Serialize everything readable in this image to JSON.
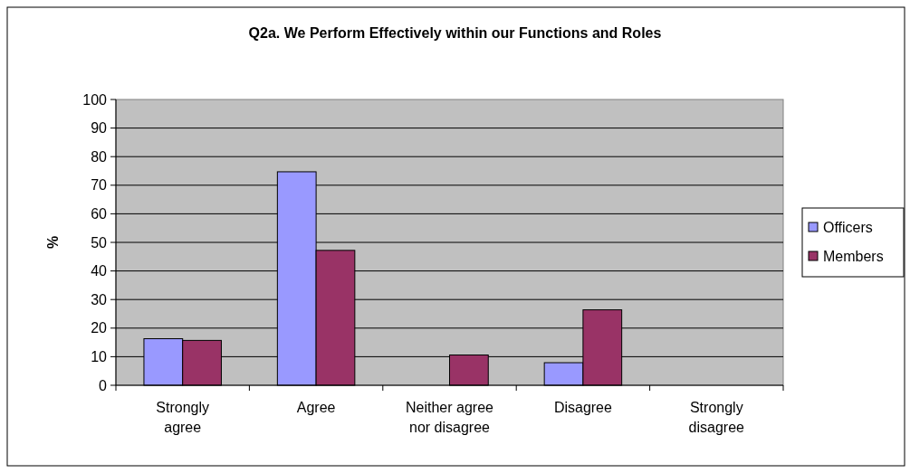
{
  "chart_data": {
    "type": "bar",
    "title": "Q2a. We Perform Effectively within our Functions and Roles",
    "ylabel": "%",
    "categories": [
      "Strongly\nagree",
      "Agree",
      "Neither agree\nnor disagree",
      "Disagree",
      "Strongly\ndisagree"
    ],
    "series": [
      {
        "name": "Officers",
        "color": "#9999ff",
        "values": [
          16.3,
          74.7,
          0,
          7.9,
          0
        ]
      },
      {
        "name": "Members",
        "color": "#993366",
        "values": [
          15.7,
          47.2,
          10.6,
          26.4,
          0
        ]
      }
    ],
    "ylim": [
      0,
      100
    ],
    "yticks": [
      0,
      10,
      20,
      30,
      40,
      50,
      60,
      70,
      80,
      90,
      100
    ],
    "grid": "y",
    "legend": "right"
  }
}
